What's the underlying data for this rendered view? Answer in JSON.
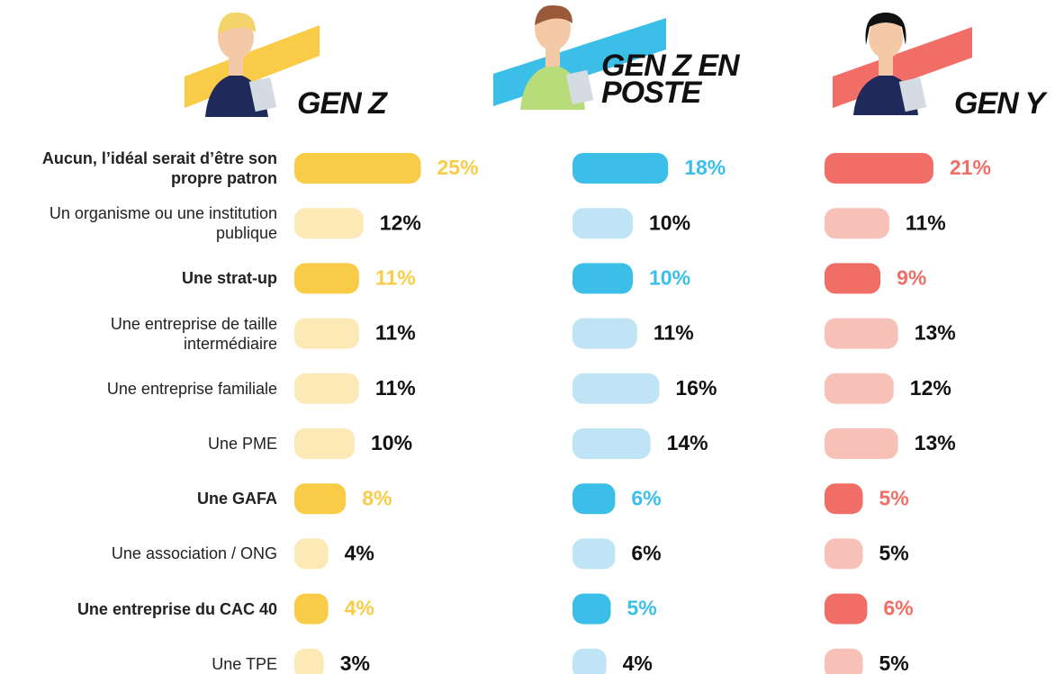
{
  "chart_data": {
    "type": "bar",
    "orientation": "horizontal",
    "categories": [
      "Aucun, l’idéal serait d’être son propre patron",
      "Un organisme ou une institution publique",
      "Une strat-up",
      "Une entreprise de taille intermédiaire",
      "Une entreprise familiale",
      "Une PME",
      "Une GAFA",
      "Une association / ONG",
      "Une entreprise du CAC 40",
      "Une TPE"
    ],
    "highlight": [
      0,
      2,
      6,
      8
    ],
    "series": [
      {
        "name": "GEN Z",
        "color": "#f9cc48",
        "light_color": "#fde9b5",
        "values": [
          25,
          12,
          11,
          11,
          11,
          10,
          8,
          4,
          4,
          3
        ],
        "value_labels": [
          "25%",
          "12%",
          "11%",
          "11%",
          "11%",
          "10%",
          "8%",
          "4%",
          "4%",
          "3%"
        ]
      },
      {
        "name": "GEN Z EN POSTE",
        "color": "#3bbfe9",
        "light_color": "#bfe4f5",
        "values": [
          18,
          10,
          10,
          11,
          16,
          14,
          6,
          6,
          5,
          4
        ],
        "value_labels": [
          "18%",
          "10%",
          "10%",
          "11%",
          "16%",
          "14%",
          "6%",
          "6%",
          "5%",
          "4%"
        ]
      },
      {
        "name": "GEN Y",
        "color": "#f06e66",
        "light_color": "#f8c1b8",
        "values": [
          21,
          11,
          9,
          13,
          12,
          13,
          5,
          5,
          6,
          5
        ],
        "value_labels": [
          "21%",
          "11%",
          "9%",
          "13%",
          "12%",
          "13%",
          "5%",
          "5%",
          "6%",
          "5%"
        ]
      }
    ]
  }
}
